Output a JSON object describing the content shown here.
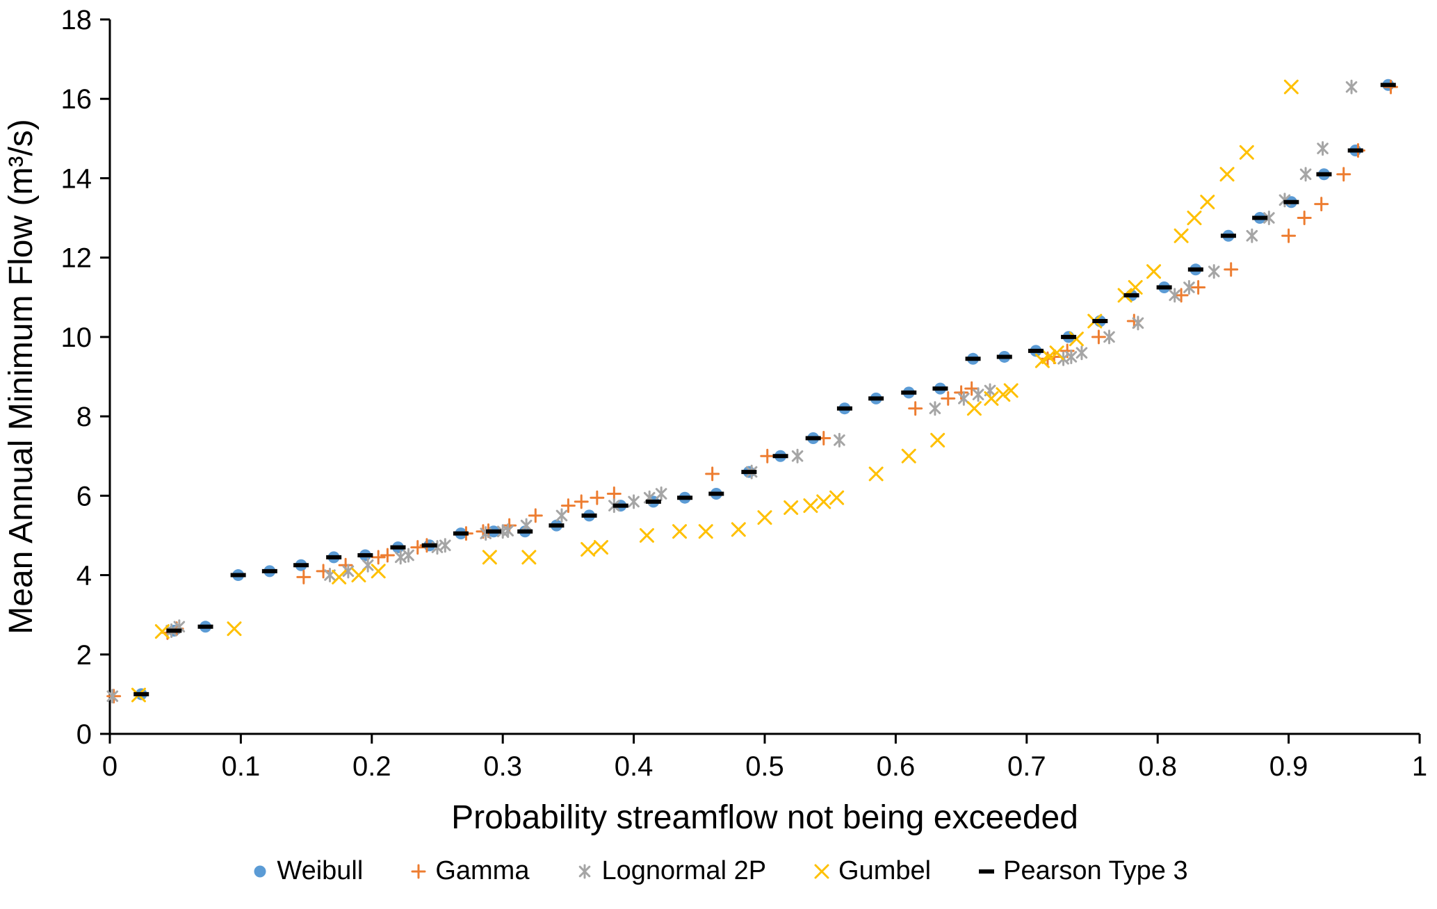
{
  "chart_data": {
    "type": "scatter",
    "title": "",
    "xlabel": "Probability streamflow not being exceeded",
    "ylabel": "Mean Annual Minimum Flow (m³/s)",
    "xlim": [
      0,
      1
    ],
    "ylim": [
      0,
      18
    ],
    "xticks": [
      0,
      0.1,
      0.2,
      0.3,
      0.4,
      0.5,
      0.6,
      0.7,
      0.8,
      0.9,
      1
    ],
    "yticks": [
      0,
      2,
      4,
      6,
      8,
      10,
      12,
      14,
      16,
      18
    ],
    "grid": false,
    "legend_position": "bottom",
    "axis_color": "#000000",
    "series": [
      {
        "name": "Weibull",
        "marker": "circle",
        "color": "#5B9BD5",
        "points": [
          [
            0.024,
            1.0
          ],
          [
            0.049,
            2.6
          ],
          [
            0.073,
            2.7
          ],
          [
            0.098,
            4.0
          ],
          [
            0.122,
            4.1
          ],
          [
            0.146,
            4.25
          ],
          [
            0.171,
            4.45
          ],
          [
            0.195,
            4.5
          ],
          [
            0.22,
            4.7
          ],
          [
            0.244,
            4.75
          ],
          [
            0.268,
            5.05
          ],
          [
            0.293,
            5.1
          ],
          [
            0.317,
            5.1
          ],
          [
            0.341,
            5.25
          ],
          [
            0.366,
            5.5
          ],
          [
            0.39,
            5.75
          ],
          [
            0.415,
            5.85
          ],
          [
            0.439,
            5.95
          ],
          [
            0.463,
            6.05
          ],
          [
            0.488,
            6.6
          ],
          [
            0.512,
            7.0
          ],
          [
            0.537,
            7.45
          ],
          [
            0.561,
            8.2
          ],
          [
            0.585,
            8.45
          ],
          [
            0.61,
            8.6
          ],
          [
            0.634,
            8.7
          ],
          [
            0.659,
            9.45
          ],
          [
            0.683,
            9.5
          ],
          [
            0.707,
            9.65
          ],
          [
            0.732,
            10.0
          ],
          [
            0.756,
            10.4
          ],
          [
            0.78,
            11.05
          ],
          [
            0.805,
            11.25
          ],
          [
            0.829,
            11.7
          ],
          [
            0.854,
            12.55
          ],
          [
            0.878,
            13.0
          ],
          [
            0.902,
            13.4
          ],
          [
            0.927,
            14.1
          ],
          [
            0.951,
            14.7
          ],
          [
            0.976,
            16.35
          ]
        ]
      },
      {
        "name": "Gamma",
        "marker": "plus",
        "color": "#ED7D31",
        "points": [
          [
            0.003,
            0.95
          ],
          [
            0.044,
            2.55
          ],
          [
            0.051,
            2.65
          ],
          [
            0.148,
            3.95
          ],
          [
            0.163,
            4.1
          ],
          [
            0.18,
            4.25
          ],
          [
            0.205,
            4.45
          ],
          [
            0.212,
            4.5
          ],
          [
            0.235,
            4.7
          ],
          [
            0.242,
            4.75
          ],
          [
            0.272,
            5.05
          ],
          [
            0.285,
            5.1
          ],
          [
            0.289,
            5.12
          ],
          [
            0.305,
            5.25
          ],
          [
            0.325,
            5.5
          ],
          [
            0.35,
            5.75
          ],
          [
            0.36,
            5.85
          ],
          [
            0.372,
            5.95
          ],
          [
            0.385,
            6.05
          ],
          [
            0.46,
            6.55
          ],
          [
            0.502,
            7.0
          ],
          [
            0.545,
            7.45
          ],
          [
            0.615,
            8.2
          ],
          [
            0.64,
            8.45
          ],
          [
            0.65,
            8.6
          ],
          [
            0.658,
            8.7
          ],
          [
            0.716,
            9.45
          ],
          [
            0.721,
            9.5
          ],
          [
            0.731,
            9.65
          ],
          [
            0.755,
            10.0
          ],
          [
            0.782,
            10.4
          ],
          [
            0.818,
            11.05
          ],
          [
            0.831,
            11.25
          ],
          [
            0.856,
            11.7
          ],
          [
            0.9,
            12.55
          ],
          [
            0.912,
            13.0
          ],
          [
            0.925,
            13.35
          ],
          [
            0.942,
            14.1
          ],
          [
            0.953,
            14.7
          ],
          [
            0.978,
            16.3
          ]
        ]
      },
      {
        "name": "Lognormal 2P",
        "marker": "star",
        "color": "#A5A5A5",
        "points": [
          [
            0.002,
            0.95
          ],
          [
            0.047,
            2.6
          ],
          [
            0.053,
            2.7
          ],
          [
            0.168,
            4.0
          ],
          [
            0.182,
            4.1
          ],
          [
            0.197,
            4.25
          ],
          [
            0.222,
            4.45
          ],
          [
            0.228,
            4.5
          ],
          [
            0.25,
            4.7
          ],
          [
            0.256,
            4.75
          ],
          [
            0.287,
            5.05
          ],
          [
            0.3,
            5.1
          ],
          [
            0.304,
            5.12
          ],
          [
            0.318,
            5.25
          ],
          [
            0.345,
            5.5
          ],
          [
            0.385,
            5.75
          ],
          [
            0.4,
            5.85
          ],
          [
            0.412,
            5.95
          ],
          [
            0.421,
            6.05
          ],
          [
            0.49,
            6.6
          ],
          [
            0.525,
            7.0
          ],
          [
            0.557,
            7.4
          ],
          [
            0.63,
            8.2
          ],
          [
            0.652,
            8.45
          ],
          [
            0.663,
            8.55
          ],
          [
            0.672,
            8.65
          ],
          [
            0.728,
            9.45
          ],
          [
            0.734,
            9.5
          ],
          [
            0.742,
            9.6
          ],
          [
            0.763,
            10.0
          ],
          [
            0.785,
            10.35
          ],
          [
            0.813,
            11.05
          ],
          [
            0.824,
            11.25
          ],
          [
            0.843,
            11.65
          ],
          [
            0.872,
            12.55
          ],
          [
            0.885,
            13.0
          ],
          [
            0.897,
            13.45
          ],
          [
            0.913,
            14.1
          ],
          [
            0.926,
            14.75
          ],
          [
            0.948,
            16.3
          ]
        ]
      },
      {
        "name": "Gumbel",
        "marker": "x",
        "color": "#FFC000",
        "points": [
          [
            0.022,
            0.98
          ],
          [
            0.04,
            2.58
          ],
          [
            0.095,
            2.65
          ],
          [
            0.175,
            3.95
          ],
          [
            0.19,
            4.0
          ],
          [
            0.205,
            4.1
          ],
          [
            0.29,
            4.45
          ],
          [
            0.32,
            4.45
          ],
          [
            0.365,
            4.65
          ],
          [
            0.375,
            4.7
          ],
          [
            0.41,
            5.0
          ],
          [
            0.435,
            5.1
          ],
          [
            0.455,
            5.1
          ],
          [
            0.48,
            5.15
          ],
          [
            0.5,
            5.45
          ],
          [
            0.52,
            5.7
          ],
          [
            0.535,
            5.75
          ],
          [
            0.545,
            5.85
          ],
          [
            0.555,
            5.95
          ],
          [
            0.585,
            6.55
          ],
          [
            0.61,
            7.0
          ],
          [
            0.632,
            7.4
          ],
          [
            0.66,
            8.2
          ],
          [
            0.673,
            8.45
          ],
          [
            0.682,
            8.55
          ],
          [
            0.688,
            8.65
          ],
          [
            0.712,
            9.4
          ],
          [
            0.717,
            9.5
          ],
          [
            0.723,
            9.6
          ],
          [
            0.738,
            9.95
          ],
          [
            0.752,
            10.4
          ],
          [
            0.775,
            11.05
          ],
          [
            0.783,
            11.25
          ],
          [
            0.797,
            11.65
          ],
          [
            0.818,
            12.55
          ],
          [
            0.828,
            13.0
          ],
          [
            0.838,
            13.4
          ],
          [
            0.853,
            14.1
          ],
          [
            0.868,
            14.65
          ],
          [
            0.902,
            16.3
          ]
        ]
      },
      {
        "name": "Pearson Type 3",
        "marker": "dash",
        "color": "#000000",
        "points": [
          [
            0.024,
            1.0
          ],
          [
            0.049,
            2.6
          ],
          [
            0.073,
            2.7
          ],
          [
            0.098,
            4.0
          ],
          [
            0.122,
            4.1
          ],
          [
            0.146,
            4.25
          ],
          [
            0.171,
            4.45
          ],
          [
            0.195,
            4.5
          ],
          [
            0.22,
            4.7
          ],
          [
            0.244,
            4.75
          ],
          [
            0.268,
            5.05
          ],
          [
            0.293,
            5.1
          ],
          [
            0.317,
            5.1
          ],
          [
            0.341,
            5.25
          ],
          [
            0.366,
            5.5
          ],
          [
            0.39,
            5.75
          ],
          [
            0.415,
            5.85
          ],
          [
            0.439,
            5.95
          ],
          [
            0.463,
            6.05
          ],
          [
            0.488,
            6.6
          ],
          [
            0.512,
            7.0
          ],
          [
            0.537,
            7.45
          ],
          [
            0.561,
            8.2
          ],
          [
            0.585,
            8.45
          ],
          [
            0.61,
            8.6
          ],
          [
            0.634,
            8.7
          ],
          [
            0.659,
            9.45
          ],
          [
            0.683,
            9.5
          ],
          [
            0.707,
            9.65
          ],
          [
            0.732,
            10.0
          ],
          [
            0.756,
            10.4
          ],
          [
            0.78,
            11.05
          ],
          [
            0.805,
            11.25
          ],
          [
            0.829,
            11.7
          ],
          [
            0.854,
            12.55
          ],
          [
            0.878,
            13.0
          ],
          [
            0.902,
            13.4
          ],
          [
            0.927,
            14.1
          ],
          [
            0.951,
            14.7
          ],
          [
            0.976,
            16.35
          ]
        ]
      }
    ]
  }
}
